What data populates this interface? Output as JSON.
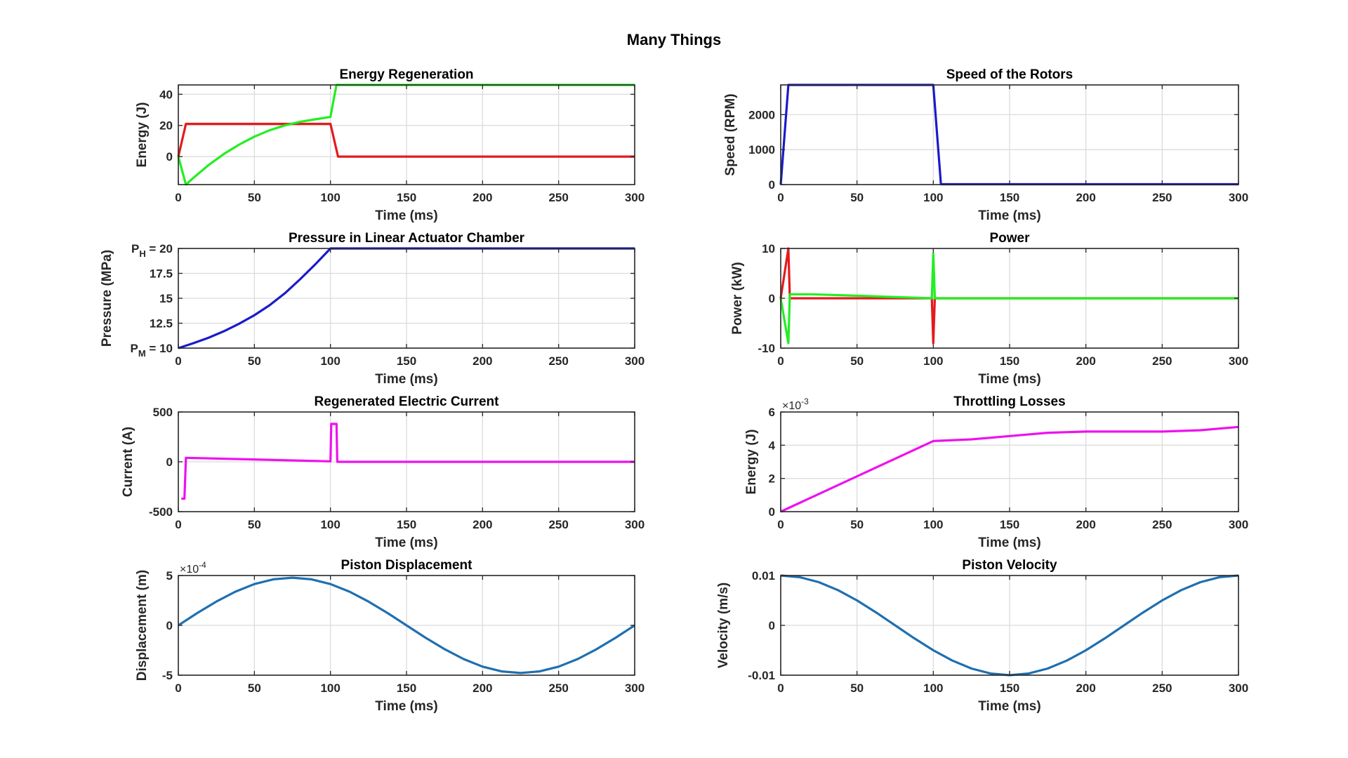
{
  "figure": {
    "title": "Many Things"
  },
  "chart_data": [
    {
      "type": "line",
      "title": "Energy Regeneration",
      "xlabel": "Time (ms)",
      "ylabel": "Energy (J)",
      "xlim": [
        0,
        300
      ],
      "ylim": [
        -18,
        46
      ],
      "xticks": [
        0,
        50,
        100,
        150,
        200,
        250,
        300
      ],
      "yticks": [
        {
          "v": 0,
          "label": "0"
        },
        {
          "v": 20,
          "label": "20"
        },
        {
          "v": 40,
          "label": "40"
        }
      ],
      "grid": true,
      "series": [
        {
          "color": "#e41a1c",
          "points": [
            [
              0,
              0
            ],
            [
              5,
              21
            ],
            [
              100,
              21
            ],
            [
              105,
              0
            ],
            [
              300,
              0
            ]
          ]
        },
        {
          "color": "#22ee22",
          "points": [
            [
              0,
              0
            ],
            [
              5,
              -18
            ],
            [
              10,
              -13.6
            ],
            [
              20,
              -5.4
            ],
            [
              30,
              1.7
            ],
            [
              40,
              7.7
            ],
            [
              50,
              12.8
            ],
            [
              60,
              16.9
            ],
            [
              70,
              20.0
            ],
            [
              80,
              22.3
            ],
            [
              90,
              23.9
            ],
            [
              99,
              25.3
            ],
            [
              100,
              25.5
            ],
            [
              102,
              36
            ],
            [
              104,
              46
            ],
            [
              300,
              46
            ]
          ]
        }
      ]
    },
    {
      "type": "line",
      "title": "Speed of the Rotors",
      "xlabel": "Time (ms)",
      "ylabel": "Speed (RPM)",
      "xlim": [
        0,
        300
      ],
      "ylim": [
        0,
        2850
      ],
      "xticks": [
        0,
        50,
        100,
        150,
        200,
        250,
        300
      ],
      "yticks": [
        {
          "v": 0,
          "label": "0"
        },
        {
          "v": 1000,
          "label": "1000"
        },
        {
          "v": 2000,
          "label": "2000"
        }
      ],
      "grid": true,
      "series": [
        {
          "color": "#1a1acc",
          "points": [
            [
              0,
              0
            ],
            [
              5,
              2850
            ],
            [
              100,
              2850
            ],
            [
              105,
              10
            ],
            [
              300,
              10
            ]
          ]
        }
      ]
    },
    {
      "type": "line",
      "title": "Pressure in Linear Actuator Chamber",
      "xlabel": "Time (ms)",
      "ylabel": "Pressure (MPa)",
      "xlim": [
        0,
        300
      ],
      "ylim": [
        10,
        20
      ],
      "xticks": [
        0,
        50,
        100,
        150,
        200,
        250,
        300
      ],
      "yticks": [
        {
          "v": 10,
          "label": "P",
          "sub": "M",
          "suffix": " = 10"
        },
        {
          "v": 12.5,
          "label": "12.5"
        },
        {
          "v": 15,
          "label": "15"
        },
        {
          "v": 17.5,
          "label": "17.5"
        },
        {
          "v": 20,
          "label": "P",
          "sub": "H",
          "suffix": " = 20"
        }
      ],
      "grid": true,
      "series": [
        {
          "color": "#1a1acc",
          "points": [
            [
              0,
              10
            ],
            [
              10,
              10.5
            ],
            [
              20,
              11.05
            ],
            [
              30,
              11.7
            ],
            [
              40,
              12.45
            ],
            [
              50,
              13.3
            ],
            [
              60,
              14.3
            ],
            [
              70,
              15.5
            ],
            [
              80,
              16.9
            ],
            [
              90,
              18.4
            ],
            [
              100,
              20
            ],
            [
              300,
              20
            ]
          ]
        }
      ]
    },
    {
      "type": "line",
      "title": "Power",
      "xlabel": "Time (ms)",
      "ylabel": "Power (kW)",
      "xlim": [
        0,
        300
      ],
      "ylim": [
        -10,
        10
      ],
      "xticks": [
        0,
        50,
        100,
        150,
        200,
        250,
        300
      ],
      "yticks": [
        {
          "v": -10,
          "label": "-10"
        },
        {
          "v": 0,
          "label": "0"
        },
        {
          "v": 10,
          "label": "10"
        }
      ],
      "grid": true,
      "series": [
        {
          "color": "#e41a1c",
          "points": [
            [
              0,
              0
            ],
            [
              5,
              10
            ],
            [
              6,
              0
            ],
            [
              99,
              0
            ],
            [
              100,
              -9
            ],
            [
              101,
              0
            ],
            [
              300,
              0
            ]
          ]
        },
        {
          "color": "#22ee22",
          "points": [
            [
              0,
              0
            ],
            [
              5,
              -9
            ],
            [
              6,
              0.8
            ],
            [
              20,
              0.8
            ],
            [
              50,
              0.5
            ],
            [
              99,
              0
            ],
            [
              100,
              9
            ],
            [
              101,
              0
            ],
            [
              300,
              0
            ]
          ]
        }
      ]
    },
    {
      "type": "line",
      "title": "Regenerated Electric Current",
      "xlabel": "Time (ms)",
      "ylabel": "Current (A)",
      "xlim": [
        0,
        300
      ],
      "ylim": [
        -500,
        500
      ],
      "xticks": [
        0,
        50,
        100,
        150,
        200,
        250,
        300
      ],
      "yticks": [
        {
          "v": -500,
          "label": "-500"
        },
        {
          "v": 0,
          "label": "0"
        },
        {
          "v": 500,
          "label": "500"
        }
      ],
      "grid": true,
      "series": [
        {
          "color": "#ee11ee",
          "points": [
            [
              2,
              -370
            ],
            [
              4,
              -370
            ],
            [
              5,
              40
            ],
            [
              100,
              5
            ],
            [
              100.5,
              380
            ],
            [
              104,
              380
            ],
            [
              104.5,
              0
            ],
            [
              300,
              0
            ]
          ]
        }
      ]
    },
    {
      "type": "line",
      "title": "Throttling Losses",
      "xlabel": "Time (ms)",
      "ylabel": "Energy (J)",
      "exponent": "-3",
      "xlim": [
        0,
        300
      ],
      "ylim": [
        0,
        6
      ],
      "xticks": [
        0,
        50,
        100,
        150,
        200,
        250,
        300
      ],
      "yticks": [
        {
          "v": 0,
          "label": "0"
        },
        {
          "v": 2,
          "label": "2"
        },
        {
          "v": 4,
          "label": "4"
        },
        {
          "v": 6,
          "label": "6"
        }
      ],
      "grid": true,
      "series": [
        {
          "color": "#ee11ee",
          "points": [
            [
              0,
              0
            ],
            [
              100,
              4.25
            ],
            [
              125,
              4.35
            ],
            [
              150,
              4.55
            ],
            [
              175,
              4.75
            ],
            [
              200,
              4.82
            ],
            [
              225,
              4.82
            ],
            [
              250,
              4.82
            ],
            [
              275,
              4.9
            ],
            [
              300,
              5.1
            ]
          ]
        }
      ]
    },
    {
      "type": "line",
      "title": "Piston Displacement",
      "xlabel": "Time (ms)",
      "ylabel": "Displacement (m)",
      "exponent": "-4",
      "xlim": [
        0,
        300
      ],
      "ylim": [
        -5,
        5
      ],
      "xticks": [
        0,
        50,
        100,
        150,
        200,
        250,
        300
      ],
      "yticks": [
        {
          "v": -5,
          "label": "-5"
        },
        {
          "v": 0,
          "label": "0"
        },
        {
          "v": 5,
          "label": "5"
        }
      ],
      "grid": true,
      "series": [
        {
          "color": "#1f6fb0",
          "points": [
            [
              0,
              0
            ],
            [
              12.5,
              1.24
            ],
            [
              25,
              2.39
            ],
            [
              37.5,
              3.38
            ],
            [
              50,
              4.14
            ],
            [
              62.5,
              4.62
            ],
            [
              75,
              4.78
            ],
            [
              87.5,
              4.62
            ],
            [
              100,
              4.14
            ],
            [
              112.5,
              3.38
            ],
            [
              125,
              2.39
            ],
            [
              137.5,
              1.24
            ],
            [
              150,
              0
            ],
            [
              162.5,
              -1.24
            ],
            [
              175,
              -2.39
            ],
            [
              187.5,
              -3.38
            ],
            [
              200,
              -4.14
            ],
            [
              212.5,
              -4.62
            ],
            [
              225,
              -4.78
            ],
            [
              237.5,
              -4.62
            ],
            [
              250,
              -4.14
            ],
            [
              262.5,
              -3.38
            ],
            [
              275,
              -2.39
            ],
            [
              287.5,
              -1.24
            ],
            [
              300,
              0
            ]
          ]
        }
      ]
    },
    {
      "type": "line",
      "title": "Piston Velocity",
      "xlabel": "Time (ms)",
      "ylabel": "Velocity (m/s)",
      "xlim": [
        0,
        300
      ],
      "ylim": [
        -0.01,
        0.01
      ],
      "xticks": [
        0,
        50,
        100,
        150,
        200,
        250,
        300
      ],
      "yticks": [
        {
          "v": -0.01,
          "label": "-0.01"
        },
        {
          "v": 0,
          "label": "0"
        },
        {
          "v": 0.01,
          "label": "0.01"
        }
      ],
      "grid": true,
      "series": [
        {
          "color": "#1f6fb0",
          "points": [
            [
              0,
              0.01
            ],
            [
              12.5,
              0.00966
            ],
            [
              25,
              0.00866
            ],
            [
              37.5,
              0.00707
            ],
            [
              50,
              0.005
            ],
            [
              62.5,
              0.00259
            ],
            [
              75,
              0
            ],
            [
              87.5,
              -0.00259
            ],
            [
              100,
              -0.005
            ],
            [
              112.5,
              -0.00707
            ],
            [
              125,
              -0.00866
            ],
            [
              137.5,
              -0.00966
            ],
            [
              150,
              -0.01
            ],
            [
              162.5,
              -0.00966
            ],
            [
              175,
              -0.00866
            ],
            [
              187.5,
              -0.00707
            ],
            [
              200,
              -0.005
            ],
            [
              212.5,
              -0.00259
            ],
            [
              225,
              0
            ],
            [
              237.5,
              0.00259
            ],
            [
              250,
              0.005
            ],
            [
              262.5,
              0.00707
            ],
            [
              275,
              0.00866
            ],
            [
              287.5,
              0.00966
            ],
            [
              300,
              0.01
            ]
          ]
        }
      ]
    }
  ]
}
